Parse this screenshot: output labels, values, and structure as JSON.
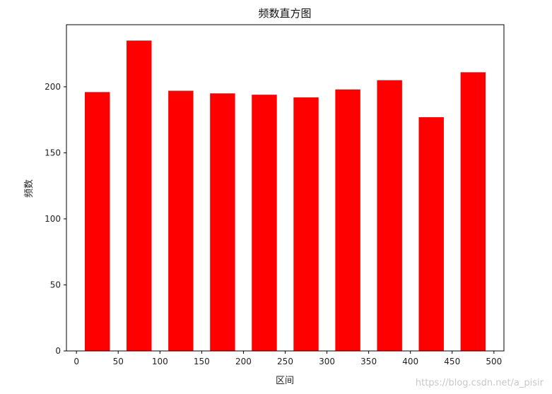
{
  "chart_data": {
    "type": "bar",
    "title": "频数直方图",
    "xlabel": "区间",
    "ylabel": "频数",
    "bar_color": "#ff0000",
    "bar_width": 30,
    "x": [
      25,
      75,
      125,
      175,
      225,
      275,
      325,
      375,
      425,
      475
    ],
    "values": [
      196,
      235,
      197,
      195,
      194,
      192,
      198,
      205,
      177,
      211
    ],
    "xlim": [
      -12,
      512
    ],
    "ylim": [
      0,
      247
    ],
    "xticks": [
      0,
      50,
      100,
      150,
      200,
      250,
      300,
      350,
      400,
      450,
      500
    ],
    "yticks": [
      0,
      50,
      100,
      150,
      200
    ],
    "grid": false,
    "legend": "none"
  },
  "watermark": "https://blog.csdn.net/a_pisir"
}
